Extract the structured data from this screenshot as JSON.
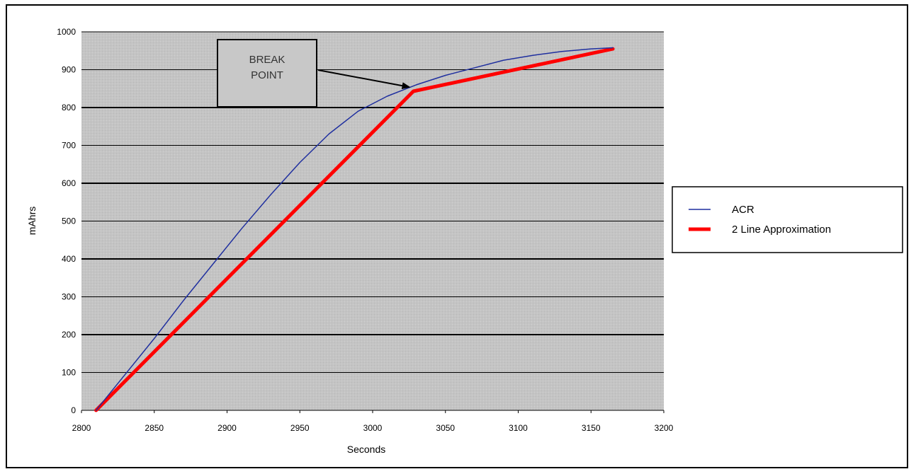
{
  "chart_data": {
    "type": "line",
    "title": "",
    "xlabel": "Seconds",
    "ylabel": "mAhrs",
    "xlim": [
      2800,
      3200
    ],
    "ylim": [
      0,
      1000
    ],
    "xticks": [
      2800,
      2850,
      2900,
      2950,
      3000,
      3050,
      3100,
      3150,
      3200
    ],
    "yticks": [
      0,
      100,
      200,
      300,
      400,
      500,
      600,
      700,
      800,
      900,
      1000
    ],
    "grid": true,
    "legend_position": "right",
    "series": [
      {
        "name": "ACR",
        "color": "#1f2f9f",
        "x": [
          2810,
          2830,
          2850,
          2870,
          2890,
          2910,
          2930,
          2950,
          2970,
          2990,
          3010,
          3030,
          3050,
          3070,
          3090,
          3110,
          3130,
          3150,
          3165
        ],
        "y": [
          0,
          95,
          190,
          290,
          385,
          480,
          570,
          655,
          730,
          790,
          830,
          860,
          885,
          905,
          925,
          938,
          948,
          955,
          958
        ]
      },
      {
        "name": "2 Line Approximation",
        "color": "#ff0000",
        "x": [
          2810,
          3028,
          3165
        ],
        "y": [
          0,
          843,
          955
        ]
      }
    ],
    "annotations": [
      {
        "text": "BREAK\nPOINT",
        "lines": [
          "BREAK",
          "POINT"
        ],
        "target_x": 3028,
        "target_y": 843
      }
    ]
  }
}
